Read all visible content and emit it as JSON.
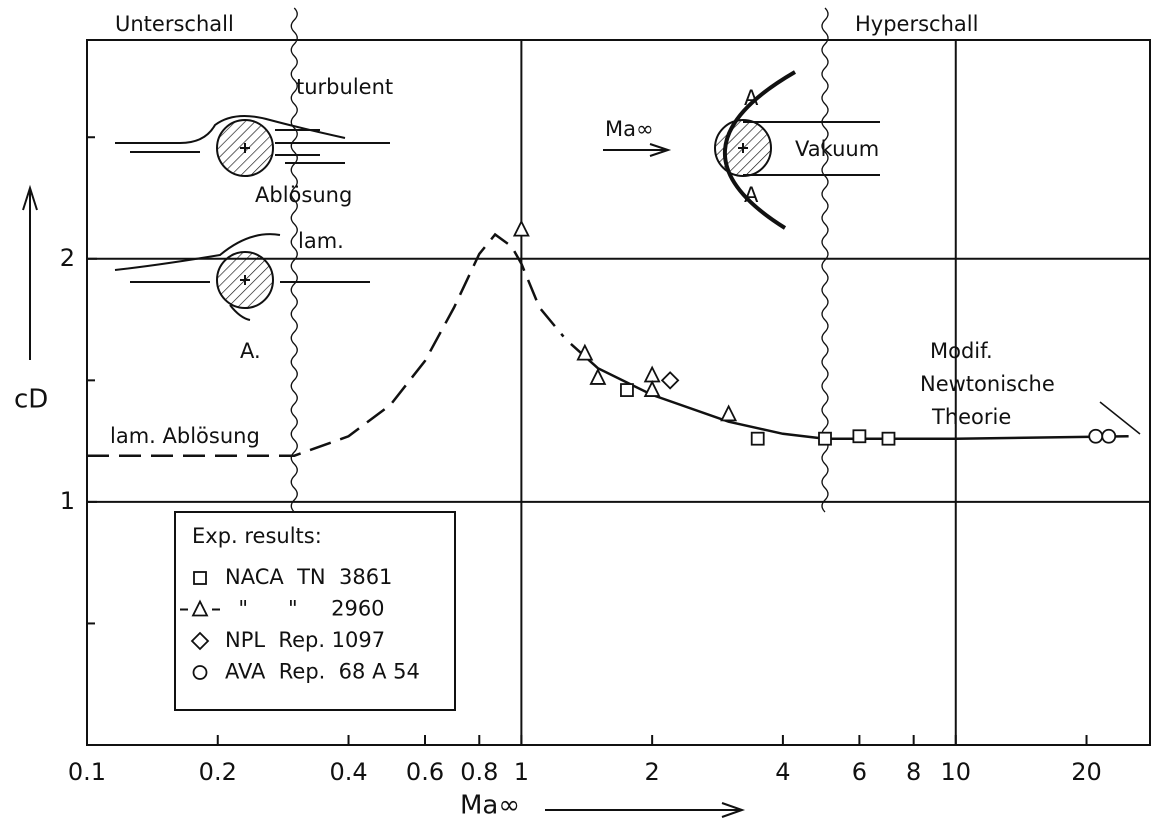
{
  "chart_data": {
    "type": "scatter",
    "x_label": "Ma∞",
    "y_label": "cD",
    "log_x": true,
    "xlim": [
      0.1,
      28
    ],
    "ylim": [
      0,
      2.9
    ],
    "xticks": [
      0.1,
      0.2,
      0.4,
      0.6,
      0.8,
      1,
      2,
      4,
      6,
      8,
      10,
      20
    ],
    "yticks": [
      1,
      2
    ],
    "yminorticks": [
      0.5,
      1.5,
      2.5
    ],
    "grid": {
      "x": [
        1,
        10
      ],
      "y": [
        1,
        2
      ]
    },
    "regime_boundaries": [
      0.3,
      5
    ],
    "lines": [
      {
        "style": "dashed",
        "x": [
          0.1,
          0.3,
          0.4,
          0.5,
          0.6,
          0.7,
          0.8,
          0.87,
          0.95,
          1.0,
          1.1,
          1.25
        ],
        "values": [
          1.19,
          1.19,
          1.27,
          1.4,
          1.58,
          1.8,
          2.02,
          2.1,
          2.05,
          1.98,
          1.8,
          1.68
        ]
      },
      {
        "style": "solid",
        "x": [
          1.3,
          1.5,
          2,
          3,
          4,
          5,
          10,
          25
        ],
        "values": [
          1.65,
          1.55,
          1.44,
          1.33,
          1.28,
          1.26,
          1.26,
          1.27
        ]
      }
    ],
    "legend": {
      "title": "Exp. results:"
    },
    "series": [
      {
        "name": "NACA  TN  3861",
        "marker": "square",
        "x": [
          1.75,
          3.5,
          5,
          6,
          7
        ],
        "values": [
          1.46,
          1.26,
          1.26,
          1.27,
          1.26
        ]
      },
      {
        "name": "  \"      \"     2960",
        "marker": "triangle",
        "x": [
          1.0,
          1.4,
          1.5,
          2.0,
          2.0,
          3.0
        ],
        "values": [
          2.12,
          1.61,
          1.51,
          1.52,
          1.46,
          1.36
        ]
      },
      {
        "name": "NPL  Rep. 1097",
        "marker": "diamond",
        "x": [
          2.2
        ],
        "values": [
          1.5
        ]
      },
      {
        "name": "AVA  Rep.  68 A 54",
        "marker": "circle",
        "x": [
          21,
          22.5
        ],
        "values": [
          1.27,
          1.27
        ]
      }
    ],
    "annotations": [
      "Unterschall",
      "Hyperschall",
      "turbulent",
      "Ablösung",
      "lam.",
      "A.",
      "lam. Ablösung",
      "Ma∞",
      "A",
      "A",
      "Vakuum",
      "Modif.",
      "Newtonische",
      "Theorie"
    ]
  }
}
